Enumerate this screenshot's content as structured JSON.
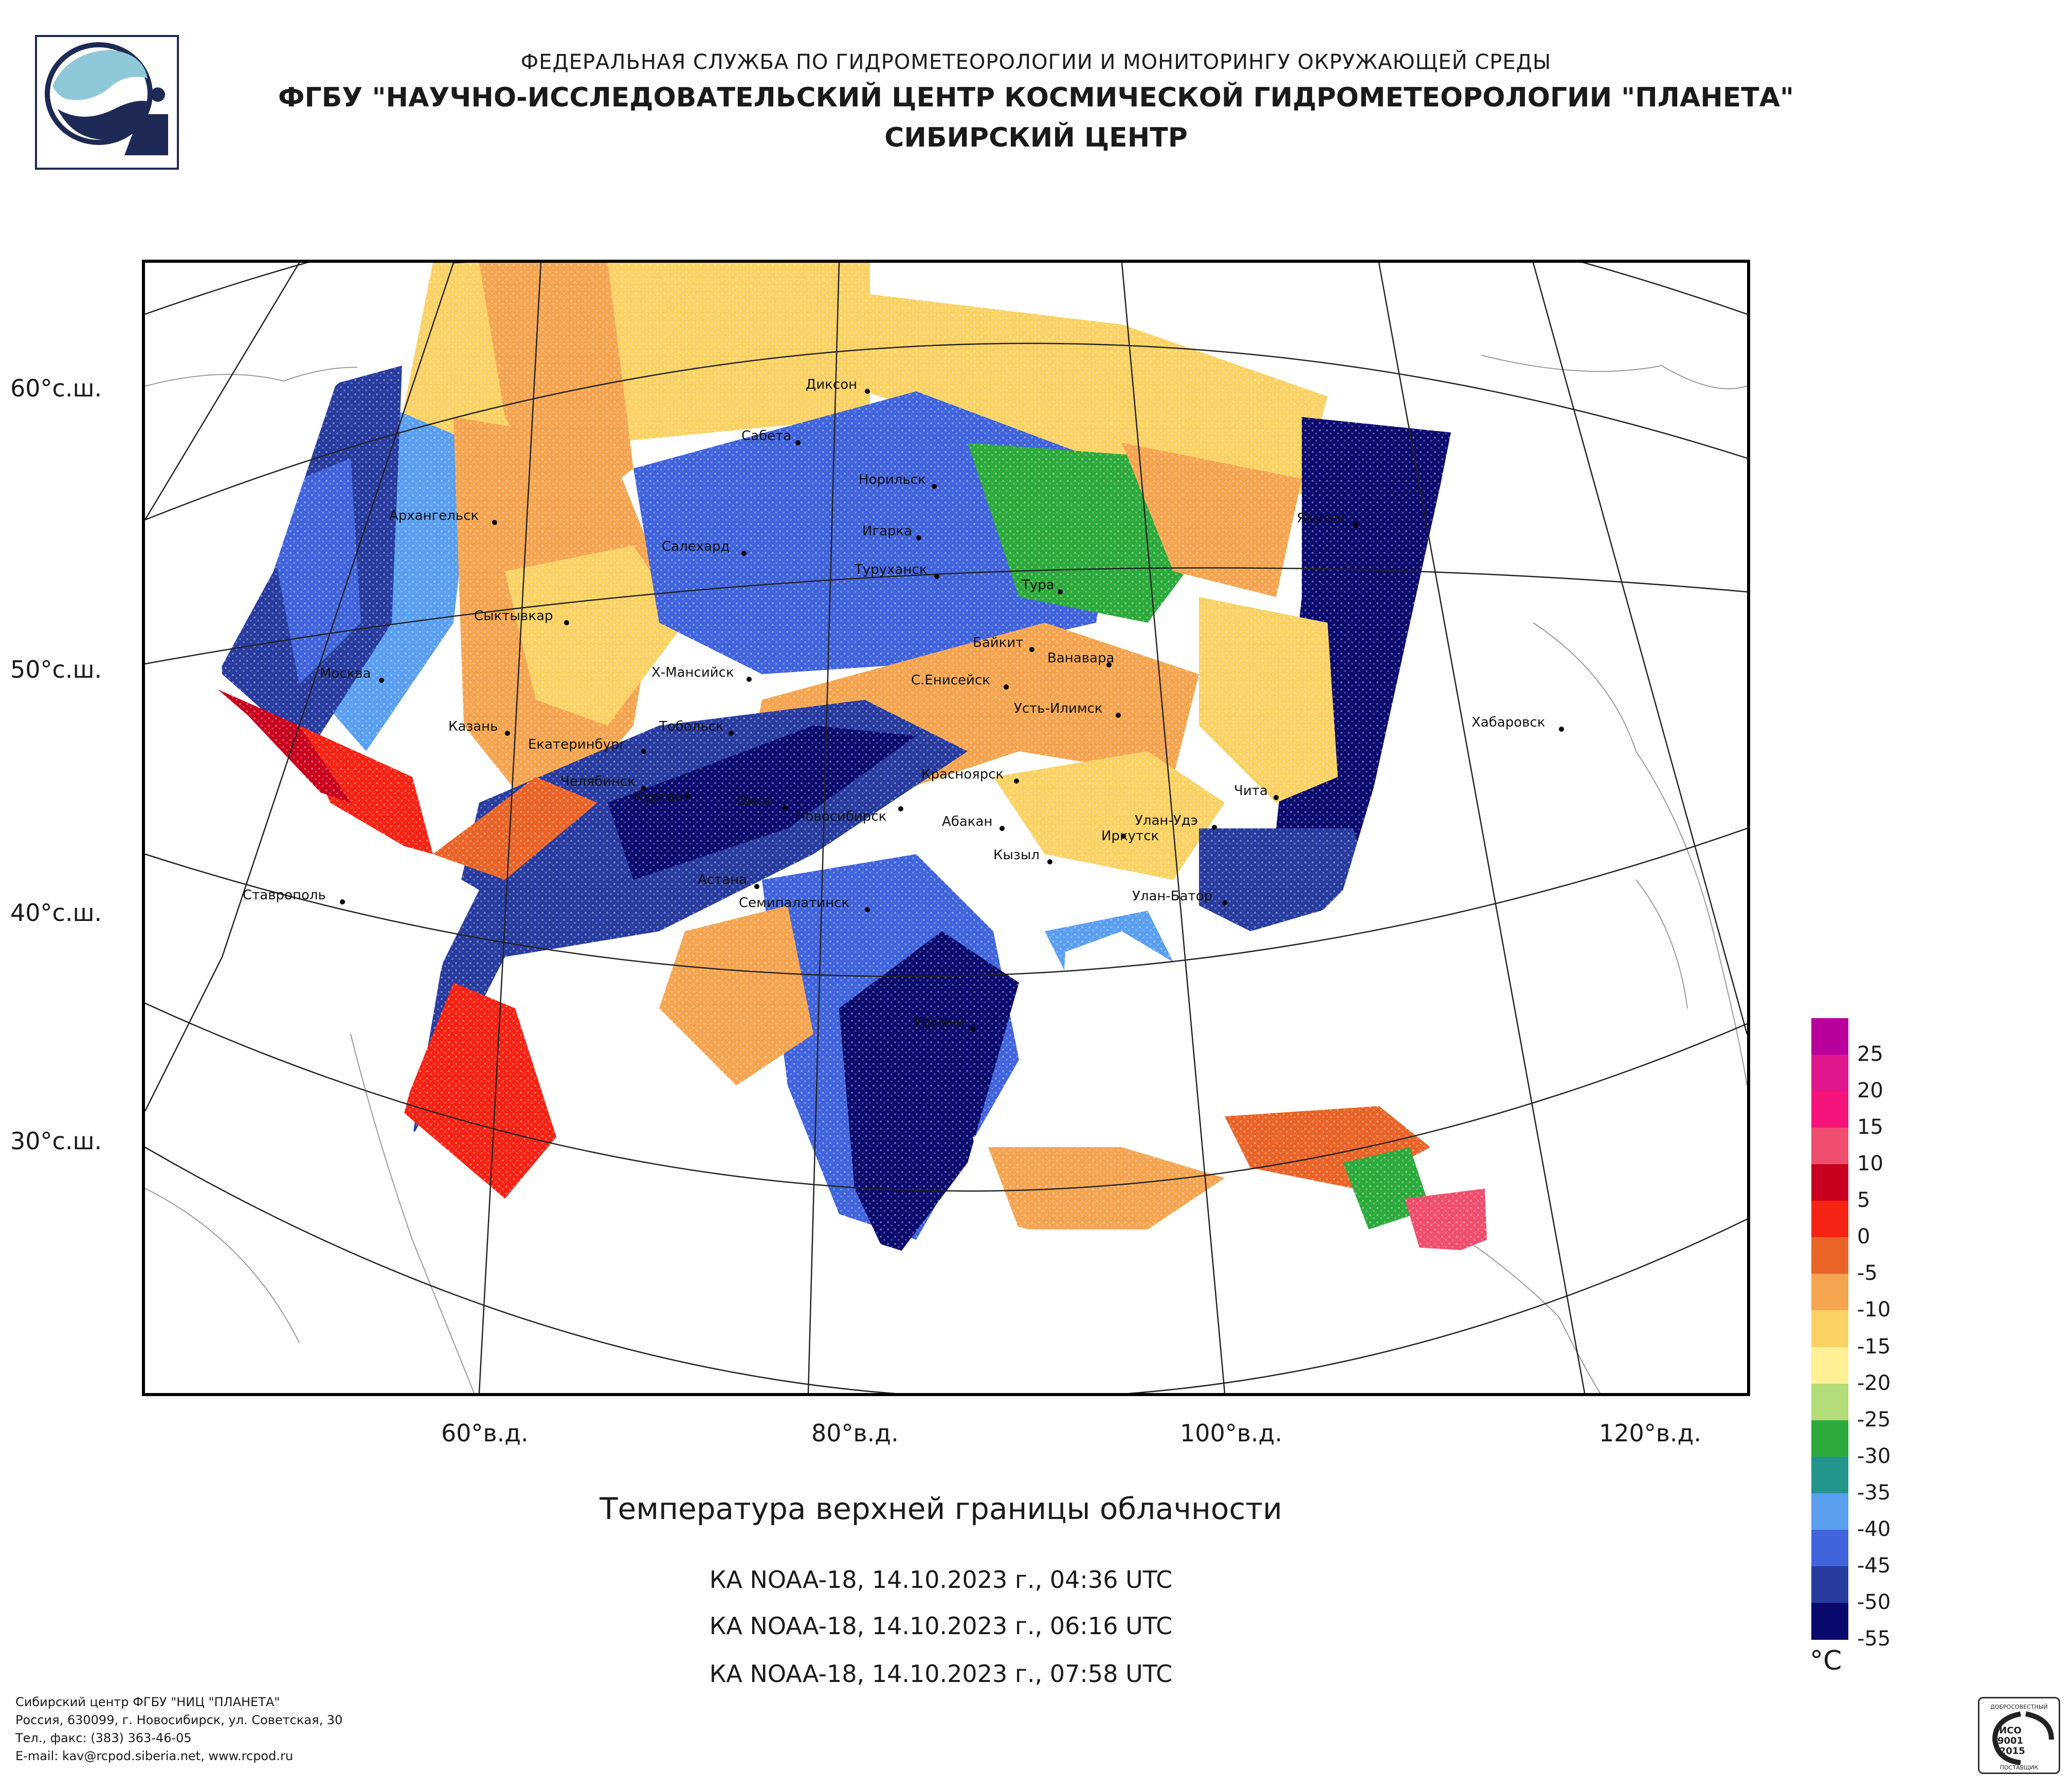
{
  "header": {
    "org_line1": "ФЕДЕРАЛЬНАЯ СЛУЖБА ПО ГИДРОМЕТЕОРОЛОГИИ И МОНИТОРИНГУ ОКРУЖАЮЩЕЙ СРЕДЫ",
    "org_line2": "ФГБУ \"НАУЧНО-ИССЛЕДОВАТЕЛЬСКИЙ ЦЕНТР КОСМИЧЕСКОЙ ГИДРОМЕТЕОРОЛОГИИ \"ПЛАНЕТА\"",
    "org_line3": "СИБИРСКИЙ ЦЕНТР"
  },
  "map": {
    "title": "Температура верхней границы облачности",
    "passes": [
      "КА NOAA-18, 14.10.2023 г., 04:36 UTC",
      "КА NOAA-18, 14.10.2023 г., 06:16 UTC",
      "КА NOAA-18, 14.10.2023 г., 07:58 UTC"
    ],
    "lat_labels": [
      "60°с.ш.",
      "50°с.ш.",
      "40°с.ш.",
      "30°с.ш."
    ],
    "lon_labels": [
      "60°в.д.",
      "80°в.д.",
      "100°в.д.",
      "120°в.д."
    ],
    "cities": [
      "Диксон",
      "Сабета",
      "Норильск",
      "Игарка",
      "Архангельск",
      "Салехард",
      "Туруханск",
      "Якутск",
      "Тура",
      "Сыктывкар",
      "Байкит",
      "Ванавара",
      "Москва",
      "Х-Мансийск",
      "С.Енисейск",
      "Усть-Илимск",
      "Хабаровск",
      "Казань",
      "Тобольск",
      "Екатеринбург",
      "Красноярск",
      "Челябинск",
      "Курган",
      "Омск",
      "Чита",
      "Новосибирск",
      "Абакан",
      "Улан-Удэ",
      "Иркутск",
      "Кызыл",
      "Астана",
      "Ставрополь",
      "Улан-Батор",
      "Семипалатинск",
      "Урумчи"
    ]
  },
  "legend": {
    "colors": [
      "#b8009b",
      "#e0168c",
      "#f5147a",
      "#f04e6e",
      "#c8001e",
      "#f52314",
      "#ea6428",
      "#f5a550",
      "#fad264",
      "#fff096",
      "#b4dc78",
      "#2daa3c",
      "#23968c",
      "#5a9ff0",
      "#4164dc",
      "#283ca0",
      "#0a0a6e"
    ],
    "values": [
      "25",
      "20",
      "15",
      "10",
      "5",
      "0",
      "-5",
      "-10",
      "-15",
      "-20",
      "-25",
      "-30",
      "-35",
      "-40",
      "-45",
      "-50",
      "-55"
    ],
    "unit": "°C"
  },
  "footer": {
    "line1": "Сибирский центр ФГБУ \"НИЦ \"ПЛАНЕТА\"",
    "line2": "Россия, 630099, г. Новосибирск, ул. Советская, 30",
    "line3": "Тел., факс: (383) 363-46-05",
    "line4": "E-mail: kav@rcpod.siberia.net, www.rcpod.ru"
  },
  "iso_badge": {
    "top": "ДОБРОСОВЕСТНЫЙ",
    "mid1": "ИСО",
    "mid2": "9001",
    "mid3": "-2015",
    "bottom": "ПОСТАВЩИК"
  }
}
